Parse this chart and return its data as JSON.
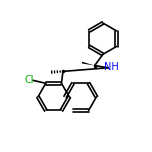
{
  "background_color": "#ffffff",
  "bond_color": "#000000",
  "atom_colors": {
    "C": "#000000",
    "N": "#0000ff",
    "Cl": "#00aa00",
    "H": "#000000"
  },
  "figsize": [
    1.52,
    1.52
  ],
  "dpi": 100
}
